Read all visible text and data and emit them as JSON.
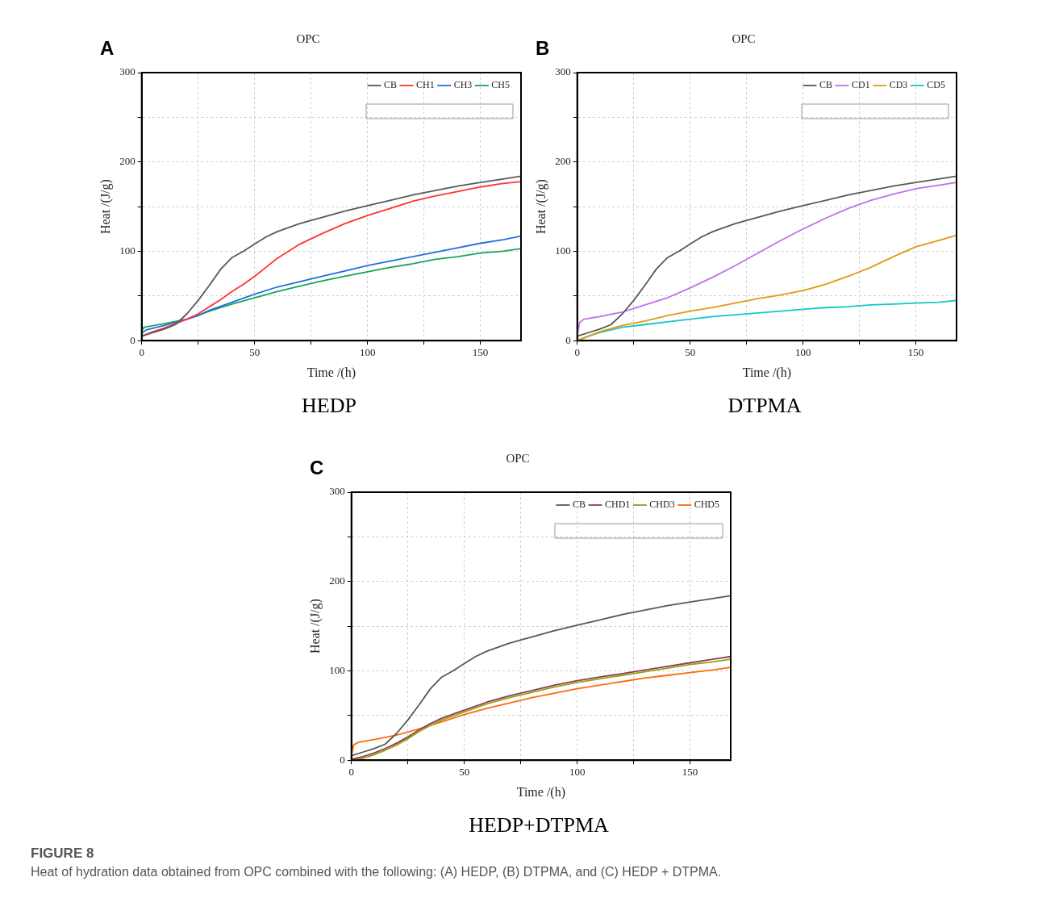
{
  "chart_data": [
    {
      "type": "line",
      "title": "OPC",
      "subtitle": "HEDP",
      "xlabel": "Time /(h)",
      "ylabel": "Heat /(J/g)",
      "annotations": [
        "A"
      ],
      "grid": true,
      "legend": "top right",
      "xlim": [
        0,
        168
      ],
      "xticks": [
        0,
        {
          "value": 25,
          "label": null
        },
        50,
        {
          "value": 75,
          "label": null
        },
        100,
        {
          "value": 125,
          "label": null
        },
        150
      ],
      "ylim": [
        0,
        300
      ],
      "yticks": [
        0,
        {
          "value": 50,
          "label": null
        },
        100,
        {
          "value": 150,
          "label": null
        },
        200,
        {
          "value": 250,
          "label": null
        },
        300
      ],
      "series": [
        {
          "name": "CB",
          "color": "#595959",
          "x": [
            0,
            5,
            10,
            15,
            20,
            25,
            30,
            35,
            40,
            45,
            50,
            55,
            60,
            70,
            80,
            90,
            100,
            110,
            120,
            130,
            140,
            150,
            160,
            168
          ],
          "values": [
            5,
            9,
            13,
            18,
            30,
            45,
            62,
            80,
            93,
            100,
            108,
            116,
            122,
            131,
            138,
            145,
            151,
            157,
            163,
            168,
            173,
            177,
            181,
            184
          ]
        },
        {
          "name": "CH1",
          "color": "#ff3333",
          "x": [
            0,
            5,
            10,
            15,
            20,
            25,
            30,
            35,
            40,
            45,
            50,
            55,
            60,
            65,
            70,
            80,
            90,
            100,
            110,
            120,
            130,
            140,
            150,
            160,
            168
          ],
          "values": [
            5,
            10,
            14,
            19,
            24,
            30,
            38,
            46,
            55,
            63,
            72,
            82,
            92,
            100,
            108,
            120,
            131,
            140,
            148,
            156,
            162,
            167,
            172,
            176,
            178
          ]
        },
        {
          "name": "CH3",
          "color": "#1f6fe0",
          "x": [
            0,
            2,
            10,
            20,
            25,
            30,
            40,
            50,
            60,
            70,
            80,
            90,
            100,
            110,
            120,
            130,
            140,
            150,
            160,
            168
          ],
          "values": [
            8,
            12,
            17,
            24,
            28,
            34,
            43,
            52,
            60,
            66,
            72,
            78,
            84,
            89,
            94,
            99,
            104,
            109,
            113,
            117
          ]
        },
        {
          "name": "CH5",
          "color": "#1aa35a",
          "x": [
            0,
            1,
            10,
            20,
            30,
            40,
            50,
            60,
            70,
            80,
            90,
            100,
            110,
            120,
            130,
            140,
            150,
            160,
            168
          ],
          "values": [
            10,
            15,
            19,
            24,
            33,
            41,
            48,
            55,
            61,
            67,
            72,
            77,
            82,
            86,
            91,
            94,
            98,
            100,
            103
          ]
        }
      ]
    },
    {
      "type": "line",
      "title": "OPC",
      "subtitle": "DTPMA",
      "xlabel": "Time /(h)",
      "ylabel": "Heat /(J/g)",
      "annotations": [
        "B"
      ],
      "grid": true,
      "legend": "top right",
      "xlim": [
        0,
        168
      ],
      "xticks": [
        0,
        {
          "value": 25,
          "label": null
        },
        50,
        {
          "value": 75,
          "label": null
        },
        100,
        {
          "value": 125,
          "label": null
        },
        150
      ],
      "ylim": [
        0,
        300
      ],
      "yticks": [
        0,
        {
          "value": 50,
          "label": null
        },
        100,
        {
          "value": 150,
          "label": null
        },
        200,
        {
          "value": 250,
          "label": null
        },
        300
      ],
      "series": [
        {
          "name": "CB",
          "color": "#595959",
          "x": [
            0,
            5,
            10,
            15,
            20,
            25,
            30,
            35,
            40,
            45,
            50,
            55,
            60,
            70,
            80,
            90,
            100,
            110,
            120,
            130,
            140,
            150,
            160,
            168
          ],
          "values": [
            5,
            9,
            13,
            18,
            30,
            45,
            62,
            80,
            93,
            100,
            108,
            116,
            122,
            131,
            138,
            145,
            151,
            157,
            163,
            168,
            173,
            177,
            181,
            184
          ]
        },
        {
          "name": "CD1",
          "color": "#c070e8",
          "x": [
            0,
            1,
            3,
            10,
            20,
            25,
            30,
            40,
            50,
            60,
            70,
            80,
            90,
            100,
            110,
            120,
            130,
            140,
            150,
            160,
            168
          ],
          "values": [
            5,
            20,
            24,
            27,
            32,
            36,
            40,
            48,
            59,
            71,
            84,
            98,
            112,
            125,
            137,
            148,
            157,
            164,
            170,
            174,
            177
          ]
        },
        {
          "name": "CD3",
          "color": "#e09a10",
          "x": [
            0,
            10,
            20,
            30,
            40,
            50,
            60,
            70,
            80,
            90,
            100,
            110,
            120,
            130,
            140,
            150,
            160,
            168
          ],
          "values": [
            0,
            10,
            17,
            22,
            28,
            33,
            37,
            42,
            47,
            51,
            56,
            63,
            72,
            82,
            94,
            105,
            112,
            118
          ]
        },
        {
          "name": "CD5",
          "color": "#10c8c8",
          "x": [
            0,
            5,
            10,
            20,
            30,
            40,
            50,
            60,
            70,
            80,
            90,
            100,
            110,
            120,
            130,
            140,
            150,
            160,
            168
          ],
          "values": [
            0,
            5,
            9,
            15,
            18,
            21,
            24,
            27,
            29,
            31,
            33,
            35,
            37,
            38,
            40,
            41,
            42,
            43,
            45
          ]
        }
      ]
    },
    {
      "type": "line",
      "title": "OPC",
      "subtitle": "HEDP+DTPMA",
      "xlabel": "Time /(h)",
      "ylabel": "Heat /(J/g)",
      "annotations": [
        "C",
        "FIGURE 8",
        "Heat of hydration data obtained from OPC combined with the following: (A) HEDP, (B) DTPMA, and (C) HEDP + DTPMA."
      ],
      "grid": true,
      "legend": "top right",
      "xlim": [
        0,
        168
      ],
      "xticks": [
        0,
        {
          "value": 25,
          "label": null
        },
        50,
        {
          "value": 75,
          "label": null
        },
        100,
        {
          "value": 125,
          "label": null
        },
        150
      ],
      "ylim": [
        0,
        300
      ],
      "yticks": [
        0,
        {
          "value": 50,
          "label": null
        },
        100,
        {
          "value": 150,
          "label": null
        },
        200,
        {
          "value": 250,
          "label": null
        },
        300
      ],
      "series": [
        {
          "name": "CB",
          "color": "#595959",
          "x": [
            0,
            5,
            10,
            15,
            20,
            25,
            30,
            35,
            40,
            45,
            50,
            55,
            60,
            70,
            80,
            90,
            100,
            110,
            120,
            130,
            140,
            150,
            160,
            168
          ],
          "values": [
            5,
            9,
            13,
            18,
            30,
            45,
            62,
            80,
            93,
            100,
            108,
            116,
            122,
            131,
            138,
            145,
            151,
            157,
            163,
            168,
            173,
            177,
            181,
            184
          ]
        },
        {
          "name": "CHD1",
          "color": "#8b4050",
          "x": [
            0,
            5,
            10,
            15,
            20,
            25,
            30,
            35,
            40,
            50,
            60,
            70,
            80,
            90,
            100,
            110,
            120,
            130,
            140,
            150,
            160,
            168
          ],
          "values": [
            1,
            4,
            8,
            13,
            19,
            26,
            34,
            41,
            47,
            56,
            65,
            72,
            78,
            84,
            89,
            93,
            97,
            101,
            105,
            109,
            113,
            116
          ]
        },
        {
          "name": "CHD3",
          "color": "#9aa010",
          "x": [
            0,
            5,
            10,
            15,
            20,
            25,
            30,
            35,
            40,
            50,
            60,
            70,
            80,
            90,
            100,
            110,
            120,
            130,
            140,
            150,
            160,
            168
          ],
          "values": [
            0,
            2,
            6,
            11,
            17,
            24,
            32,
            39,
            45,
            54,
            63,
            70,
            76,
            82,
            87,
            91,
            95,
            99,
            103,
            107,
            110,
            113
          ]
        },
        {
          "name": "CHD5",
          "color": "#ff6a10",
          "x": [
            0,
            1,
            3,
            10,
            20,
            30,
            40,
            50,
            60,
            70,
            80,
            90,
            100,
            110,
            120,
            130,
            140,
            150,
            160,
            168
          ],
          "values": [
            5,
            17,
            20,
            23,
            28,
            35,
            43,
            51,
            58,
            64,
            70,
            75,
            80,
            84,
            88,
            92,
            95,
            98,
            101,
            104
          ]
        }
      ]
    }
  ]
}
